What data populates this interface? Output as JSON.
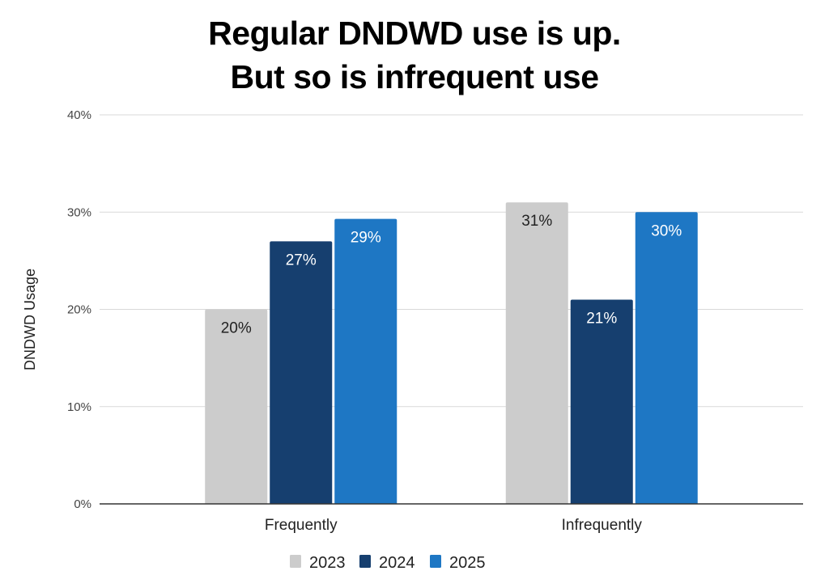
{
  "chart_data": {
    "type": "bar",
    "title_lines": [
      "Regular DNDWD use is up.",
      "But so is infrequent use"
    ],
    "xlabel": "",
    "ylabel": "DNDWD Usage",
    "categories": [
      "Frequently",
      "Infrequently"
    ],
    "series": [
      {
        "name": "2023",
        "color": "#cccccc",
        "label_color": "#222222",
        "values": [
          20,
          31
        ],
        "labels": [
          "20%",
          "31%"
        ]
      },
      {
        "name": "2024",
        "color": "#163f6f",
        "label_color": "#ffffff",
        "values": [
          27,
          21
        ],
        "labels": [
          "27%",
          "21%"
        ]
      },
      {
        "name": "2025",
        "color": "#1e77c4",
        "label_color": "#ffffff",
        "values": [
          29.3,
          30
        ],
        "labels": [
          "29%",
          "30%"
        ]
      }
    ],
    "ylim": [
      0,
      40
    ],
    "yticks": [
      0,
      10,
      20,
      30,
      40
    ],
    "ytick_labels": [
      "0%",
      "10%",
      "20%",
      "30%",
      "40%"
    ],
    "grid": true,
    "legend_position": "bottom-center"
  }
}
